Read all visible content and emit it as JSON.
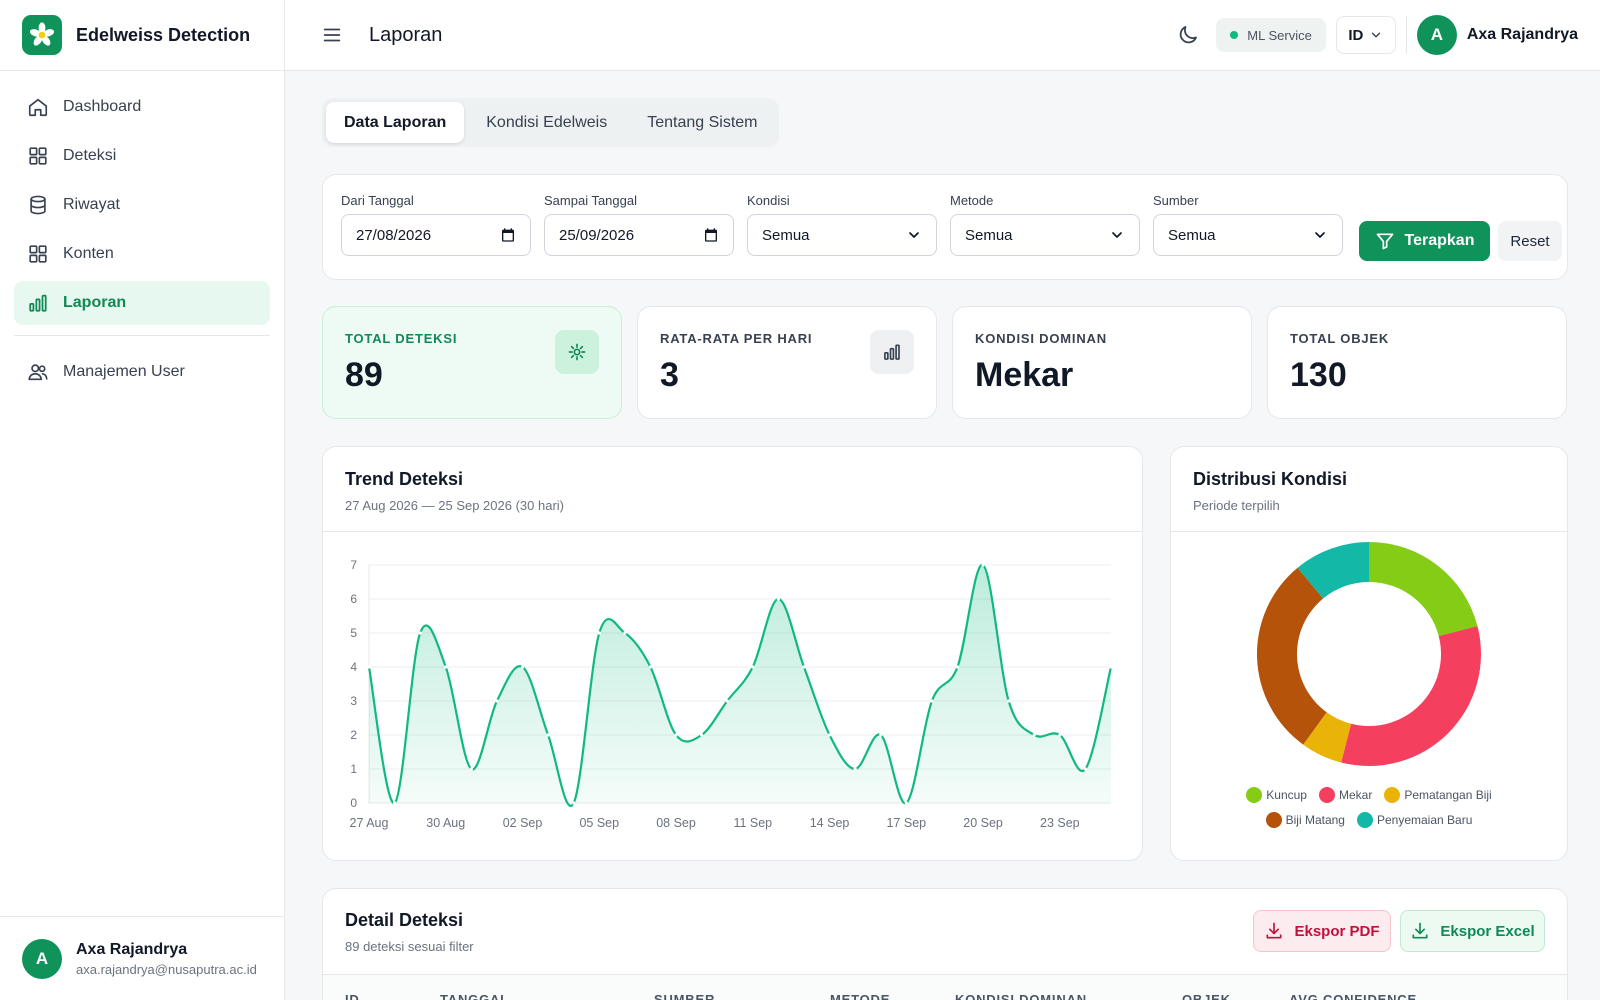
{
  "brand": {
    "name": "Edelweiss Detection"
  },
  "sidebar": {
    "items": [
      {
        "label": "Dashboard"
      },
      {
        "label": "Deteksi"
      },
      {
        "label": "Riwayat"
      },
      {
        "label": "Konten"
      },
      {
        "label": "Laporan"
      },
      {
        "label": "Manajemen User"
      }
    ],
    "active": "Laporan",
    "user": {
      "initial": "A",
      "name": "Axa Rajandrya",
      "email": "axa.rajandrya@nusaputra.ac.id"
    }
  },
  "topbar": {
    "title": "Laporan",
    "ml_service": "ML Service",
    "language": "ID",
    "user": {
      "initial": "A",
      "name": "Axa Rajandrya"
    }
  },
  "tabs": [
    {
      "label": "Data Laporan"
    },
    {
      "label": "Kondisi Edelweis"
    },
    {
      "label": "Tentang Sistem"
    }
  ],
  "filters": {
    "from_label": "Dari Tanggal",
    "from_value": "27/08/2026",
    "to_label": "Sampai Tanggal",
    "to_value": "25/09/2026",
    "kondisi_label": "Kondisi",
    "kondisi_value": "Semua",
    "metode_label": "Metode",
    "metode_value": "Semua",
    "sumber_label": "Sumber",
    "sumber_value": "Semua",
    "apply": "Terapkan",
    "reset": "Reset"
  },
  "stats": [
    {
      "label": "TOTAL DETEKSI",
      "value": "89"
    },
    {
      "label": "RATA-RATA PER HARI",
      "value": "3"
    },
    {
      "label": "KONDISI DOMINAN",
      "value": "Mekar"
    },
    {
      "label": "TOTAL OBJEK",
      "value": "130"
    }
  ],
  "trend": {
    "title": "Trend Deteksi",
    "subtitle": "27 Aug 2026 — 25 Sep 2026 (30 hari)"
  },
  "distribution": {
    "title": "Distribusi Kondisi",
    "subtitle": "Periode terpilih"
  },
  "detail": {
    "title": "Detail Deteksi",
    "subtitle": "89 deteksi sesuai filter",
    "export_pdf": "Ekspor PDF",
    "export_excel": "Ekspor Excel",
    "columns": [
      "ID",
      "TANGGAL",
      "SUMBER",
      "METODE",
      "KONDISI DOMINAN",
      "OBJEK",
      "AVG CONFIDENCE"
    ]
  },
  "colors": {
    "primary": "#10935b",
    "kuncup": "#84cc16",
    "mekar": "#f43f5e",
    "pematangan": "#eab308",
    "biji": "#b45309",
    "penyemaian": "#14b8a6"
  },
  "chart_data": [
    {
      "type": "area",
      "x": [
        "27 Aug",
        "28 Aug",
        "29 Aug",
        "30 Aug",
        "31 Aug",
        "01 Sep",
        "02 Sep",
        "03 Sep",
        "04 Sep",
        "05 Sep",
        "06 Sep",
        "07 Sep",
        "08 Sep",
        "09 Sep",
        "10 Sep",
        "11 Sep",
        "12 Sep",
        "13 Sep",
        "14 Sep",
        "15 Sep",
        "16 Sep",
        "17 Sep",
        "18 Sep",
        "19 Sep",
        "20 Sep",
        "21 Sep",
        "22 Sep",
        "23 Sep",
        "24 Sep",
        "25 Sep"
      ],
      "values": [
        4,
        0,
        5,
        4,
        1,
        3,
        4,
        2,
        0,
        5,
        5,
        4,
        2,
        2,
        3,
        4,
        6,
        4,
        2,
        1,
        2,
        0,
        3,
        4,
        7,
        3,
        2,
        2,
        1,
        4
      ],
      "xticks": [
        "27 Aug",
        "30 Aug",
        "02 Sep",
        "05 Sep",
        "08 Sep",
        "11 Sep",
        "14 Sep",
        "17 Sep",
        "20 Sep",
        "23 Sep"
      ],
      "yticks": [
        "0",
        "1",
        "2",
        "3",
        "4",
        "5",
        "6",
        "7"
      ],
      "ylim": [
        0,
        7
      ],
      "grid": true
    },
    {
      "type": "pie",
      "categories": [
        "Kuncup",
        "Mekar",
        "Pematangan Biji",
        "Biji Matang",
        "Penyemaian Baru"
      ],
      "values": [
        21,
        33,
        6,
        29,
        11
      ],
      "legend": "bottom"
    }
  ]
}
